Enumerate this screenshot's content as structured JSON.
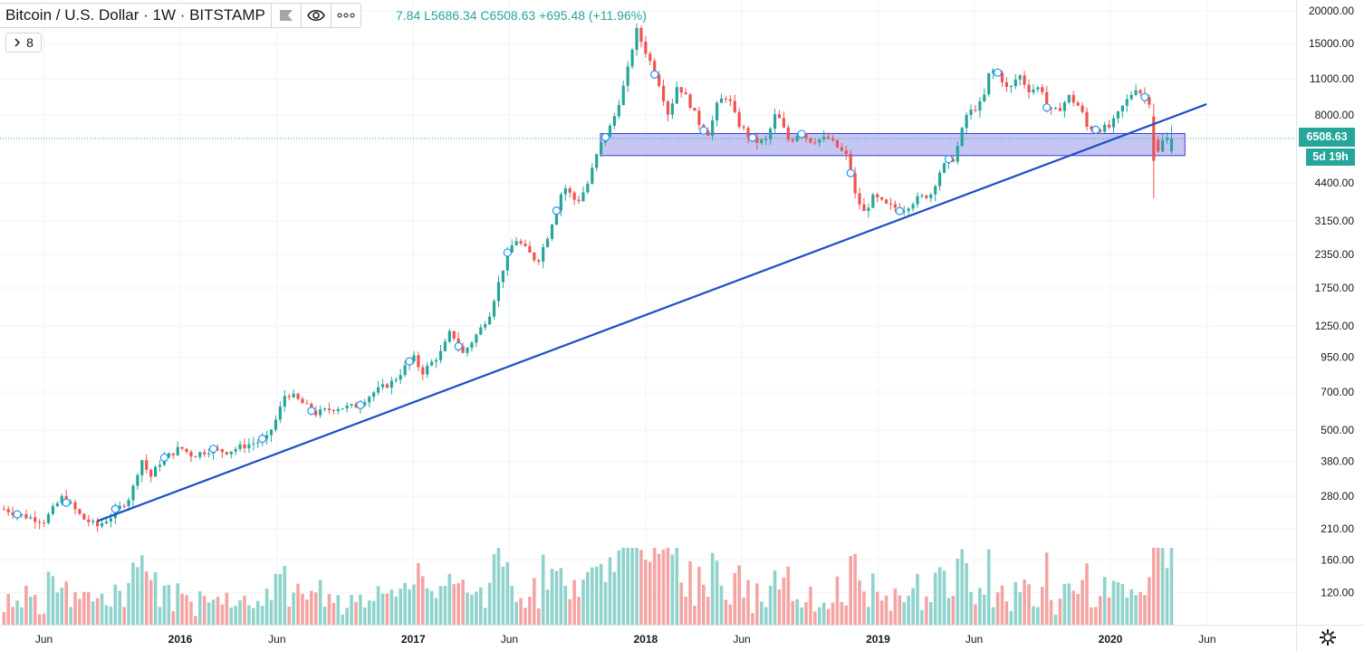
{
  "header": {
    "symbol": "Bitcoin / U.S. Dollar · 1W · BITSTAMP",
    "ohlc_text": "7.84  L5686.34  C6508.63  +695.48 (+11.96%)",
    "collapse_count": "8"
  },
  "price_axis": {
    "current_price_label": "6508.63",
    "countdown_label": "5d 19h"
  },
  "colors": {
    "up": "#26a69a",
    "down": "#ef5350",
    "volume_up": "#8fd3cc",
    "volume_down": "#f4a5a3",
    "trendline": "#1d4fc4",
    "zone_fill": "#b3b3f0",
    "zone_border": "#3b3bd1",
    "price_line": "#26a69a"
  },
  "icons": [
    "flag-icon",
    "eye-icon",
    "more-icon",
    "chevron-right-icon",
    "gear-icon"
  ],
  "chart_data": {
    "type": "candlestick",
    "title": "Bitcoin / U.S. Dollar · 1W · BITSTAMP",
    "y_scale": "log",
    "y_ticks": [
      "20000.00",
      "15000.00",
      "11000.00",
      "8000.00",
      "4400.00",
      "3150.00",
      "2350.00",
      "1750.00",
      "1250.00",
      "950.00",
      "700.00",
      "500.00",
      "380.00",
      "280.00",
      "210.00",
      "160.00",
      "120.00"
    ],
    "x_ticks": [
      "Jun",
      "2016",
      "Jun",
      "2017",
      "Jun",
      "2018",
      "Jun",
      "2019",
      "Jun",
      "2020",
      "Jun"
    ],
    "x_tick_dates": [
      "2015-06-01",
      "2016-01-01",
      "2016-06-01",
      "2017-01-01",
      "2017-06-01",
      "2018-01-01",
      "2018-06-01",
      "2019-01-01",
      "2019-06-01",
      "2020-01-01",
      "2020-06-01"
    ],
    "last": {
      "close": 6508.63,
      "low": 5686.34,
      "change": 695.48,
      "change_pct": 11.96
    },
    "price_path": [
      [
        "2015-03-30",
        250
      ],
      [
        "2015-05-01",
        235
      ],
      [
        "2015-06-01",
        225
      ],
      [
        "2015-07-01",
        280
      ],
      [
        "2015-08-01",
        230
      ],
      [
        "2015-08-24",
        215
      ],
      [
        "2015-09-15",
        235
      ],
      [
        "2015-10-15",
        280
      ],
      [
        "2015-11-01",
        390
      ],
      [
        "2015-11-15",
        330
      ],
      [
        "2015-12-01",
        380
      ],
      [
        "2016-01-01",
        430
      ],
      [
        "2016-01-20",
        400
      ],
      [
        "2016-02-15",
        420
      ],
      [
        "2016-03-15",
        415
      ],
      [
        "2016-04-15",
        440
      ],
      [
        "2016-05-15",
        460
      ],
      [
        "2016-06-01",
        560
      ],
      [
        "2016-06-15",
        700
      ],
      [
        "2016-07-01",
        660
      ],
      [
        "2016-08-01",
        580
      ],
      [
        "2016-09-01",
        610
      ],
      [
        "2016-10-01",
        615
      ],
      [
        "2016-11-01",
        700
      ],
      [
        "2016-12-01",
        770
      ],
      [
        "2017-01-01",
        950
      ],
      [
        "2017-01-15",
        830
      ],
      [
        "2017-02-15",
        1000
      ],
      [
        "2017-03-01",
        1200
      ],
      [
        "2017-03-20",
        980
      ],
      [
        "2017-04-15",
        1200
      ],
      [
        "2017-05-01",
        1400
      ],
      [
        "2017-05-25",
        2200
      ],
      [
        "2017-06-10",
        2700
      ],
      [
        "2017-07-15",
        2200
      ],
      [
        "2017-08-01",
        2800
      ],
      [
        "2017-08-25",
        4300
      ],
      [
        "2017-09-15",
        3700
      ],
      [
        "2017-10-01",
        4300
      ],
      [
        "2017-10-20",
        6000
      ],
      [
        "2017-11-10",
        7500
      ],
      [
        "2017-12-01",
        11000
      ],
      [
        "2017-12-17",
        17000
      ],
      [
        "2018-01-01",
        14000
      ],
      [
        "2018-01-20",
        11000
      ],
      [
        "2018-02-06",
        8000
      ],
      [
        "2018-02-20",
        10500
      ],
      [
        "2018-03-10",
        9000
      ],
      [
        "2018-03-25",
        7500
      ],
      [
        "2018-04-10",
        6800
      ],
      [
        "2018-04-25",
        9000
      ],
      [
        "2018-05-10",
        9500
      ],
      [
        "2018-05-25",
        7500
      ],
      [
        "2018-06-20",
        6300
      ],
      [
        "2018-07-10",
        6400
      ],
      [
        "2018-07-25",
        8200
      ],
      [
        "2018-08-15",
        6300
      ],
      [
        "2018-09-01",
        7000
      ],
      [
        "2018-09-15",
        6400
      ],
      [
        "2018-10-15",
        6500
      ],
      [
        "2018-11-15",
        5500
      ],
      [
        "2018-11-25",
        4000
      ],
      [
        "2018-12-10",
        3400
      ],
      [
        "2018-12-25",
        3900
      ],
      [
        "2019-01-15",
        3600
      ],
      [
        "2019-02-10",
        3500
      ],
      [
        "2019-03-01",
        3800
      ],
      [
        "2019-03-25",
        4000
      ],
      [
        "2019-04-10",
        5000
      ],
      [
        "2019-05-01",
        5500
      ],
      [
        "2019-05-20",
        8000
      ],
      [
        "2019-06-15",
        9000
      ],
      [
        "2019-06-26",
        12000
      ],
      [
        "2019-07-10",
        11500
      ],
      [
        "2019-07-25",
        9800
      ],
      [
        "2019-08-10",
        11500
      ],
      [
        "2019-08-25",
        10000
      ],
      [
        "2019-09-15",
        10200
      ],
      [
        "2019-09-25",
        8200
      ],
      [
        "2019-10-10",
        8300
      ],
      [
        "2019-10-28",
        9400
      ],
      [
        "2019-11-15",
        8500
      ],
      [
        "2019-11-25",
        7200
      ],
      [
        "2019-12-15",
        7100
      ],
      [
        "2020-01-01",
        7200
      ],
      [
        "2020-01-20",
        8600
      ],
      [
        "2020-02-10",
        10200
      ],
      [
        "2020-02-25",
        9300
      ],
      [
        "2020-03-05",
        8900
      ],
      [
        "2020-03-12",
        5200
      ],
      [
        "2020-03-19",
        6200
      ],
      [
        "2020-03-26",
        6500
      ],
      [
        "2020-04-06",
        6508
      ]
    ],
    "trendline": [
      [
        "2015-08-24",
        225
      ],
      [
        "2020-05-31",
        8800
      ]
    ],
    "zone": {
      "from": "2017-10-22",
      "to": "2020-04-27",
      "low": 5600,
      "high": 6800
    },
    "current_price_line": 6508.63,
    "volume_axis_ticks": [
      "210.00",
      "160.00",
      "120.00"
    ]
  }
}
